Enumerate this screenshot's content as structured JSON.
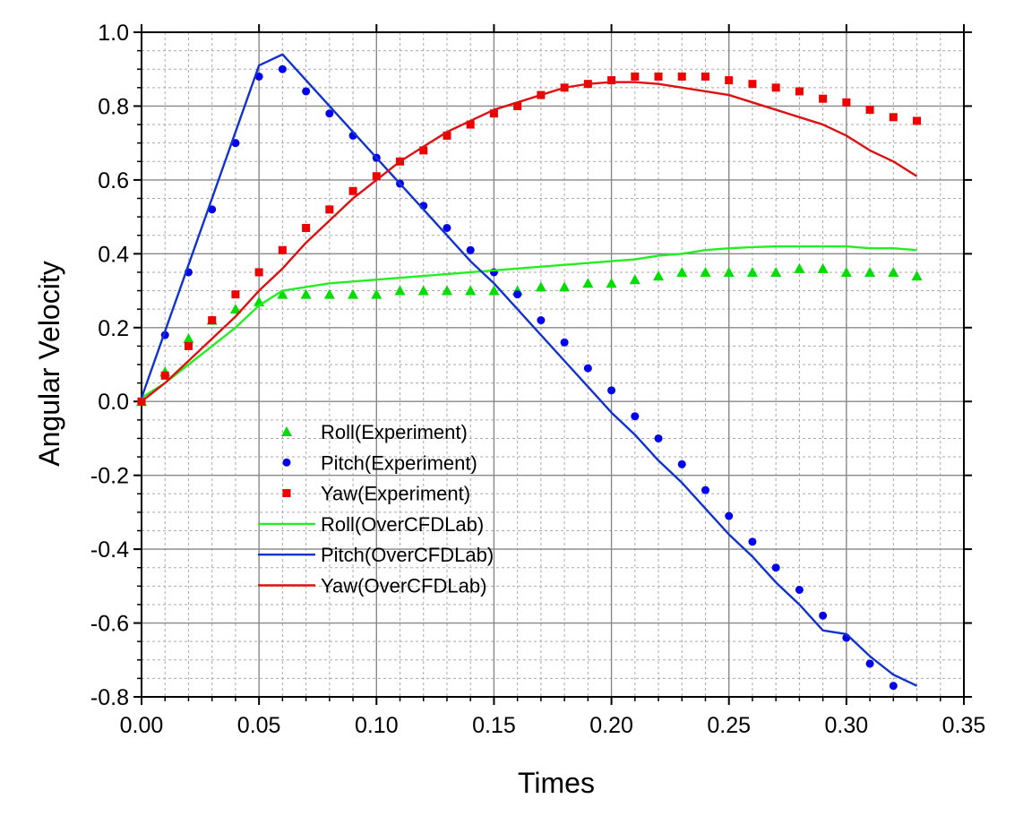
{
  "chart_data": {
    "type": "line",
    "title": "",
    "xlabel": "Times",
    "ylabel": "Angular Velocity",
    "xlim": [
      0,
      0.35
    ],
    "ylim": [
      -0.8,
      1.0
    ],
    "x_ticks": [
      "0.00",
      "0.05",
      "0.10",
      "0.15",
      "0.20",
      "0.25",
      "0.30",
      "0.35"
    ],
    "y_ticks": [
      "-0.8",
      "-0.6",
      "-0.4",
      "-0.2",
      "0.0",
      "0.2",
      "0.4",
      "0.6",
      "0.8",
      "1.0"
    ],
    "grid": true,
    "legend_position": "lower-left",
    "series": [
      {
        "name": "Roll(Experiment)",
        "kind": "scatter",
        "marker": "triangle",
        "color": "#00dd00",
        "x": [
          0.0,
          0.01,
          0.02,
          0.03,
          0.04,
          0.05,
          0.06,
          0.07,
          0.08,
          0.09,
          0.1,
          0.11,
          0.12,
          0.13,
          0.14,
          0.15,
          0.16,
          0.17,
          0.18,
          0.19,
          0.2,
          0.21,
          0.22,
          0.23,
          0.24,
          0.25,
          0.26,
          0.27,
          0.28,
          0.29,
          0.3,
          0.31,
          0.32,
          0.33
        ],
        "y": [
          0.0,
          0.08,
          0.17,
          0.22,
          0.25,
          0.27,
          0.29,
          0.29,
          0.29,
          0.29,
          0.29,
          0.3,
          0.3,
          0.3,
          0.3,
          0.3,
          0.3,
          0.31,
          0.31,
          0.32,
          0.32,
          0.33,
          0.34,
          0.35,
          0.35,
          0.35,
          0.35,
          0.35,
          0.36,
          0.36,
          0.35,
          0.35,
          0.35,
          0.34
        ]
      },
      {
        "name": "Pitch(Experiment)",
        "kind": "scatter",
        "marker": "circle",
        "color": "#0000ee",
        "x": [
          0.0,
          0.01,
          0.02,
          0.03,
          0.04,
          0.05,
          0.06,
          0.07,
          0.08,
          0.09,
          0.1,
          0.11,
          0.12,
          0.13,
          0.14,
          0.15,
          0.16,
          0.17,
          0.18,
          0.19,
          0.2,
          0.21,
          0.22,
          0.23,
          0.24,
          0.25,
          0.26,
          0.27,
          0.28,
          0.29,
          0.3,
          0.31,
          0.32
        ],
        "y": [
          0.0,
          0.18,
          0.35,
          0.52,
          0.7,
          0.88,
          0.9,
          0.84,
          0.78,
          0.72,
          0.66,
          0.59,
          0.53,
          0.47,
          0.41,
          0.35,
          0.29,
          0.22,
          0.16,
          0.09,
          0.03,
          -0.04,
          -0.1,
          -0.17,
          -0.24,
          -0.31,
          -0.38,
          -0.45,
          -0.51,
          -0.58,
          -0.64,
          -0.71,
          -0.77
        ]
      },
      {
        "name": "Yaw(Experiment)",
        "kind": "scatter",
        "marker": "square",
        "color": "#ee0000",
        "x": [
          0.0,
          0.01,
          0.02,
          0.03,
          0.04,
          0.05,
          0.06,
          0.07,
          0.08,
          0.09,
          0.1,
          0.11,
          0.12,
          0.13,
          0.14,
          0.15,
          0.16,
          0.17,
          0.18,
          0.19,
          0.2,
          0.21,
          0.22,
          0.23,
          0.24,
          0.25,
          0.26,
          0.27,
          0.28,
          0.29,
          0.3,
          0.31,
          0.32,
          0.33
        ],
        "y": [
          0.0,
          0.07,
          0.15,
          0.22,
          0.29,
          0.35,
          0.41,
          0.47,
          0.52,
          0.57,
          0.61,
          0.65,
          0.68,
          0.72,
          0.75,
          0.78,
          0.8,
          0.83,
          0.85,
          0.86,
          0.87,
          0.88,
          0.88,
          0.88,
          0.88,
          0.87,
          0.86,
          0.85,
          0.84,
          0.82,
          0.81,
          0.79,
          0.77,
          0.76
        ]
      },
      {
        "name": "Roll(OverCFDLab)",
        "kind": "line",
        "color": "#22ee22",
        "x": [
          0.0,
          0.01,
          0.02,
          0.03,
          0.04,
          0.05,
          0.06,
          0.08,
          0.1,
          0.12,
          0.14,
          0.16,
          0.18,
          0.2,
          0.21,
          0.22,
          0.23,
          0.24,
          0.25,
          0.26,
          0.27,
          0.28,
          0.29,
          0.3,
          0.31,
          0.32,
          0.33
        ],
        "y": [
          0.01,
          0.05,
          0.1,
          0.15,
          0.2,
          0.26,
          0.3,
          0.32,
          0.33,
          0.34,
          0.35,
          0.36,
          0.37,
          0.38,
          0.385,
          0.395,
          0.4,
          0.41,
          0.415,
          0.418,
          0.42,
          0.42,
          0.42,
          0.42,
          0.415,
          0.415,
          0.41
        ]
      },
      {
        "name": "Pitch(OverCFDLab)",
        "kind": "line",
        "color": "#1133cc",
        "x": [
          0.0,
          0.01,
          0.02,
          0.03,
          0.04,
          0.05,
          0.06,
          0.07,
          0.08,
          0.09,
          0.1,
          0.11,
          0.12,
          0.13,
          0.14,
          0.15,
          0.16,
          0.17,
          0.18,
          0.19,
          0.2,
          0.21,
          0.22,
          0.23,
          0.24,
          0.25,
          0.26,
          0.27,
          0.28,
          0.29,
          0.3,
          0.31,
          0.32,
          0.33
        ],
        "y": [
          0.01,
          0.19,
          0.37,
          0.55,
          0.73,
          0.91,
          0.94,
          0.87,
          0.8,
          0.73,
          0.66,
          0.59,
          0.52,
          0.45,
          0.38,
          0.32,
          0.25,
          0.18,
          0.11,
          0.04,
          -0.03,
          -0.09,
          -0.16,
          -0.22,
          -0.29,
          -0.36,
          -0.42,
          -0.49,
          -0.55,
          -0.62,
          -0.63,
          -0.69,
          -0.74,
          -0.77
        ]
      },
      {
        "name": "Yaw(OverCFDLab)",
        "kind": "line",
        "color": "#dd1111",
        "x": [
          0.0,
          0.01,
          0.02,
          0.03,
          0.04,
          0.05,
          0.06,
          0.07,
          0.08,
          0.09,
          0.1,
          0.11,
          0.12,
          0.13,
          0.14,
          0.15,
          0.16,
          0.17,
          0.18,
          0.19,
          0.2,
          0.21,
          0.22,
          0.23,
          0.24,
          0.25,
          0.26,
          0.27,
          0.28,
          0.29,
          0.3,
          0.31,
          0.32,
          0.33
        ],
        "y": [
          0.0,
          0.05,
          0.11,
          0.17,
          0.23,
          0.3,
          0.36,
          0.43,
          0.49,
          0.55,
          0.6,
          0.65,
          0.69,
          0.73,
          0.76,
          0.79,
          0.81,
          0.83,
          0.85,
          0.86,
          0.865,
          0.865,
          0.86,
          0.85,
          0.84,
          0.83,
          0.81,
          0.79,
          0.77,
          0.75,
          0.72,
          0.68,
          0.65,
          0.61
        ]
      }
    ]
  }
}
